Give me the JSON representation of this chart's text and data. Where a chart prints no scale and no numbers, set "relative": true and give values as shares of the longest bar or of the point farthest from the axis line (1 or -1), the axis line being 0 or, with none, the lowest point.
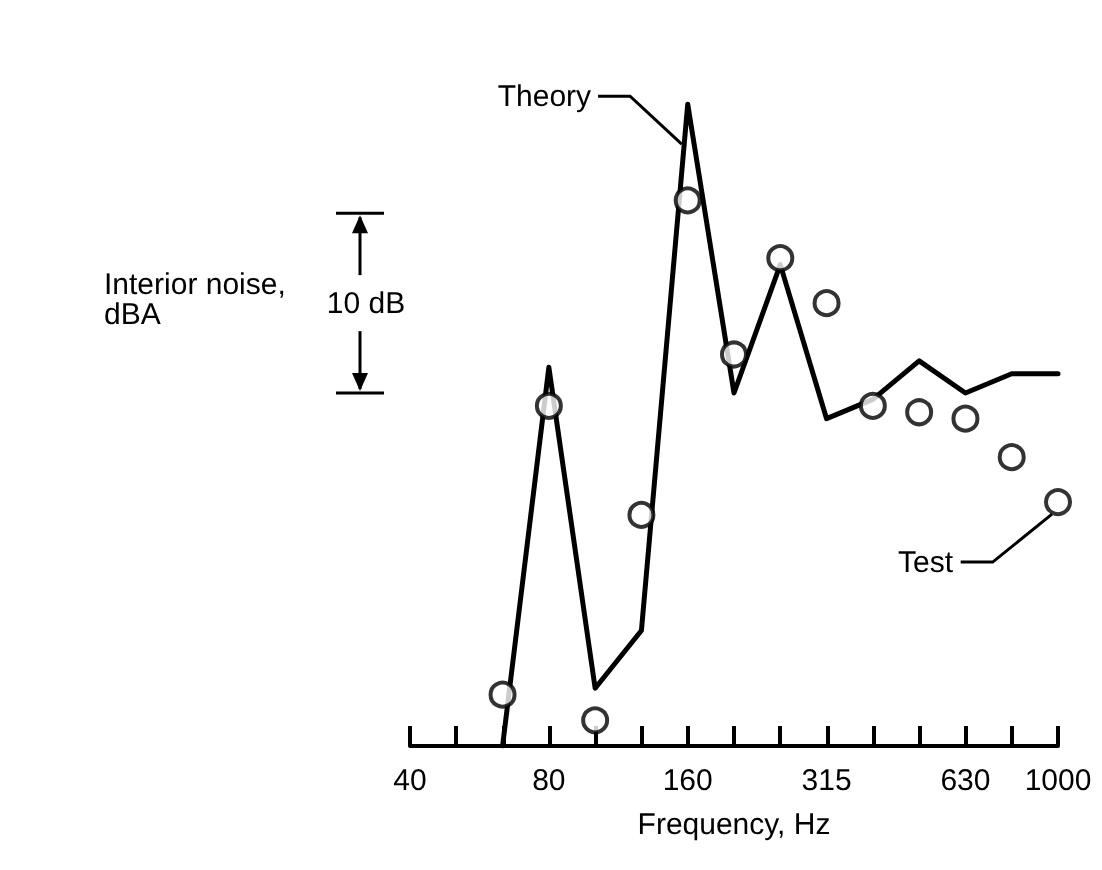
{
  "chart_data": {
    "type": "line",
    "relative": true,
    "xlabel": "Frequency, Hz",
    "ylabel": "Interior noise, dBA",
    "categories": [
      "40",
      null,
      null,
      "80",
      null,
      null,
      "160",
      null,
      null,
      "315",
      null,
      null,
      "630",
      null,
      "1000"
    ],
    "series": [
      {
        "name": "Theory",
        "color": "#000000",
        "marker": "none",
        "values": [
          null,
          null,
          0,
          0.59,
          0.09,
          0.18,
          1,
          0.55,
          0.75,
          0.51,
          0.54,
          0.6,
          0.55,
          0.58,
          0.58
        ]
      },
      {
        "name": "Test",
        "type": "scatter",
        "color": "#000000",
        "marker": "circle",
        "values": [
          null,
          null,
          0.08,
          0.53,
          0.04,
          0.36,
          0.85,
          0.61,
          0.76,
          0.69,
          0.53,
          0.52,
          0.51,
          0.45,
          0.38
        ]
      }
    ],
    "line_style": "solid",
    "grid": false,
    "legend": false,
    "annotations": [
      "10 dB"
    ]
  }
}
